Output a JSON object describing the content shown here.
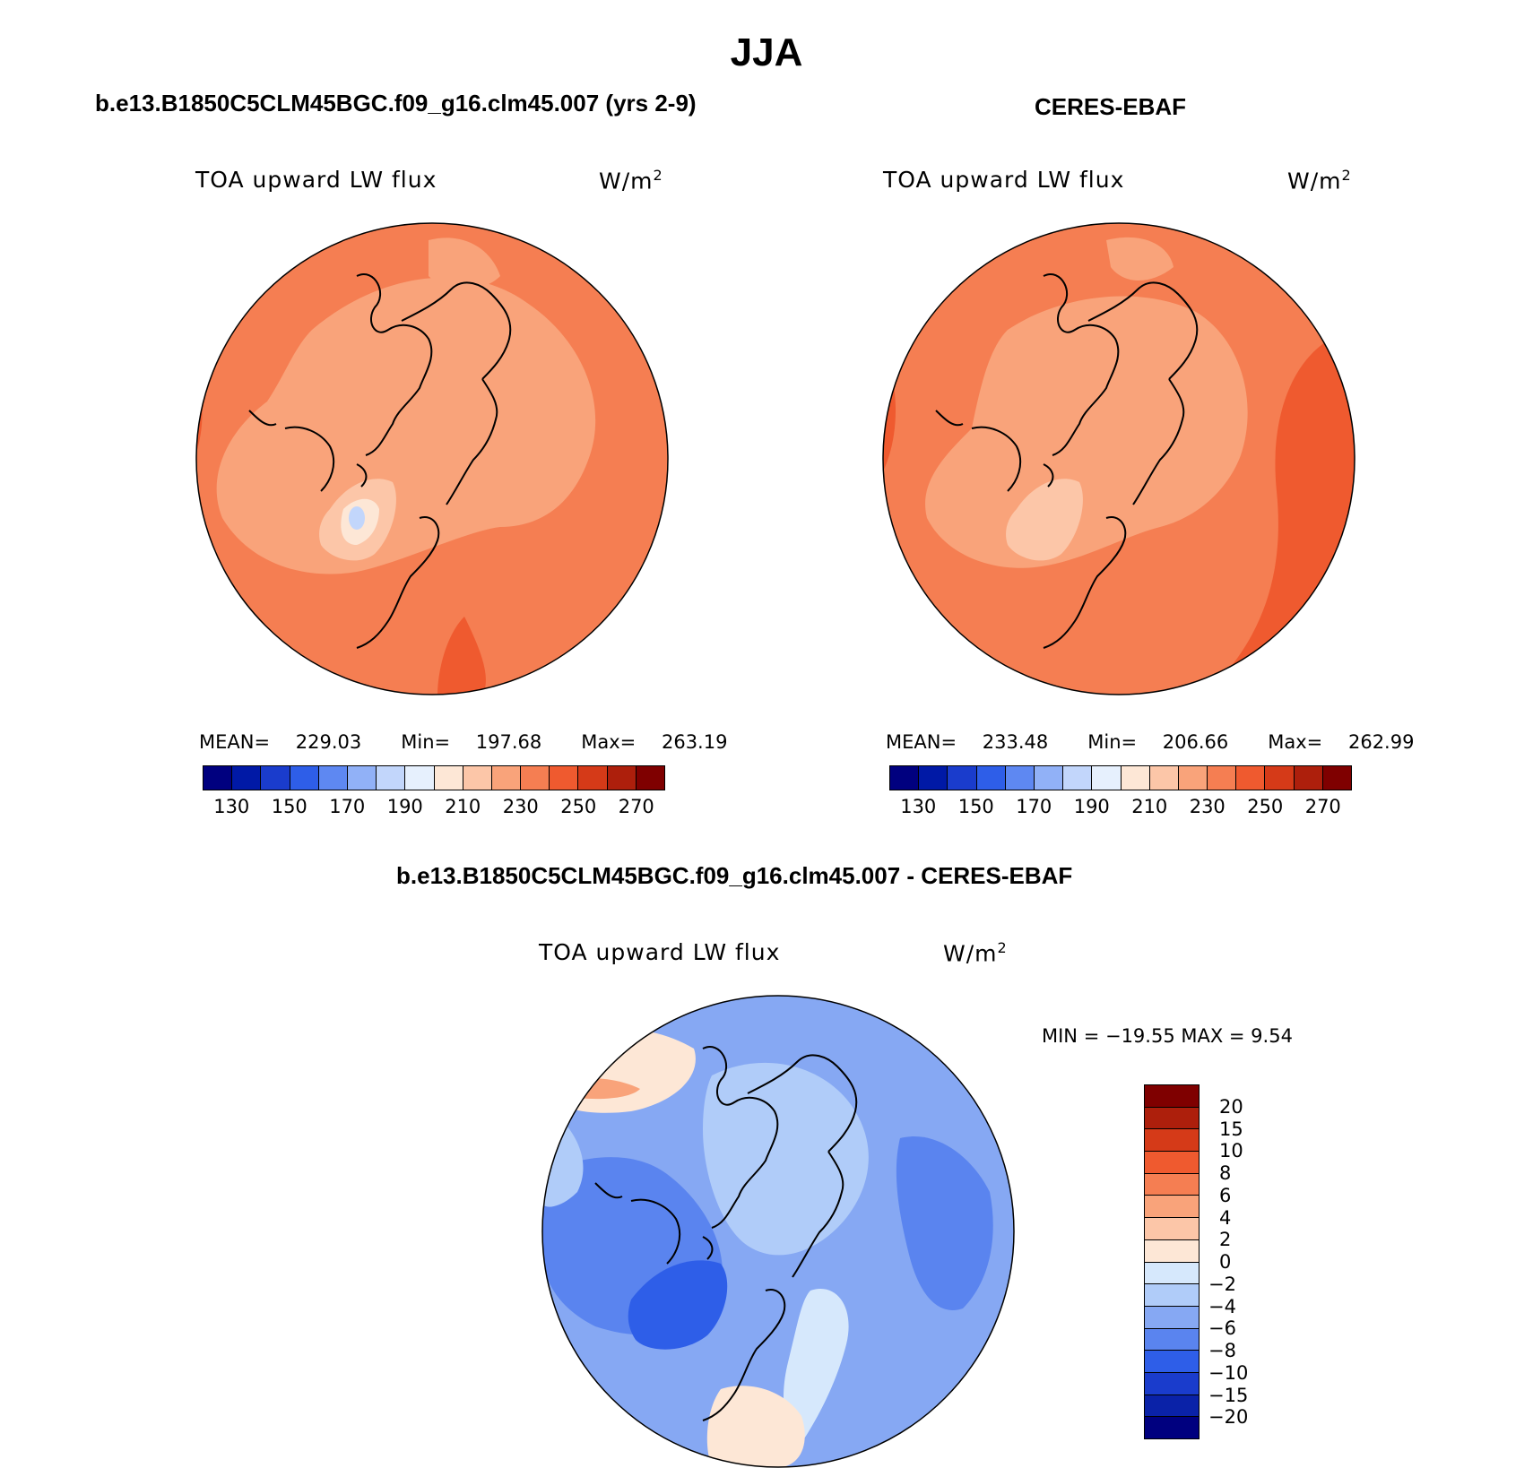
{
  "title": "JJA",
  "panels": [
    {
      "id": "model",
      "title": "b.e13.B1850C5CLM45BGC.f09_g16.clm45.007 (yrs 2-9)",
      "variable": "TOA upward LW flux",
      "unit_base": "W/m",
      "unit_exp": "2",
      "stats": {
        "mean_label": "MEAN=",
        "mean": "229.03",
        "min_label": "Min=",
        "min": "197.68",
        "max_label": "Max=",
        "max": "263.19"
      }
    },
    {
      "id": "obs",
      "title": "CERES-EBAF",
      "variable": "TOA upward LW flux",
      "unit_base": "W/m",
      "unit_exp": "2",
      "stats": {
        "mean_label": "MEAN=",
        "mean": "233.48",
        "min_label": "Min=",
        "min": "206.66",
        "max_label": "Max=",
        "max": "262.99"
      }
    },
    {
      "id": "diff",
      "title": "b.e13.B1850C5CLM45BGC.f09_g16.clm45.007 - CERES-EBAF",
      "variable": "TOA upward LW flux",
      "unit_base": "W/m",
      "unit_exp": "2",
      "minmax_text": "MIN = −19.55 MAX =    9.54"
    }
  ],
  "abs_colorbar": {
    "colors": [
      "#00007f",
      "#0019a6",
      "#1a3ccc",
      "#2e5ee8",
      "#5e88f2",
      "#91b1f7",
      "#c2d6fb",
      "#e6f0fd",
      "#fde7d6",
      "#fcc6a8",
      "#f9a37a",
      "#f57e52",
      "#ef5a2f",
      "#d53a18",
      "#ad1f0c",
      "#7f0000"
    ],
    "ticks": [
      "130",
      "150",
      "170",
      "190",
      "210",
      "230",
      "250",
      "270"
    ]
  },
  "diff_colorbar": {
    "colors": [
      "#7f0000",
      "#ad1f0c",
      "#d53a18",
      "#ef5a2f",
      "#f57e52",
      "#f9a37a",
      "#fcc6a8",
      "#fde7d6",
      "#d6e8fc",
      "#b0ccf9",
      "#86a8f3",
      "#5a84ef",
      "#2e5ee8",
      "#1a3ccc",
      "#0a22a8",
      "#00007f"
    ],
    "ticks": [
      "20",
      "15",
      "10",
      "8",
      "6",
      "4",
      "2",
      "0",
      "−2",
      "−4",
      "−6",
      "−8",
      "−10",
      "−15",
      "−20"
    ]
  },
  "chart_data": [
    {
      "type": "heatmap",
      "projection": "north-polar-stereographic",
      "title": "b.e13.B1850C5CLM45BGC.f09_g16.clm45.007 (yrs 2-9)",
      "variable": "TOA upward LW flux",
      "units": "W/m2",
      "mean": 229.03,
      "min": 197.68,
      "max": 263.19,
      "colorbar_levels": [
        130,
        140,
        150,
        160,
        170,
        180,
        190,
        200,
        210,
        220,
        230,
        240,
        250,
        260,
        270
      ]
    },
    {
      "type": "heatmap",
      "projection": "north-polar-stereographic",
      "title": "CERES-EBAF",
      "variable": "TOA upward LW flux",
      "units": "W/m2",
      "mean": 233.48,
      "min": 206.66,
      "max": 262.99,
      "colorbar_levels": [
        130,
        140,
        150,
        160,
        170,
        180,
        190,
        200,
        210,
        220,
        230,
        240,
        250,
        260,
        270
      ]
    },
    {
      "type": "heatmap",
      "projection": "north-polar-stereographic",
      "title": "b.e13.B1850C5CLM45BGC.f09_g16.clm45.007 - CERES-EBAF",
      "variable": "TOA upward LW flux",
      "units": "W/m2",
      "min": -19.55,
      "max": 9.54,
      "colorbar_levels": [
        20,
        15,
        10,
        8,
        6,
        4,
        2,
        0,
        -2,
        -4,
        -6,
        -8,
        -10,
        -15,
        -20
      ]
    }
  ]
}
